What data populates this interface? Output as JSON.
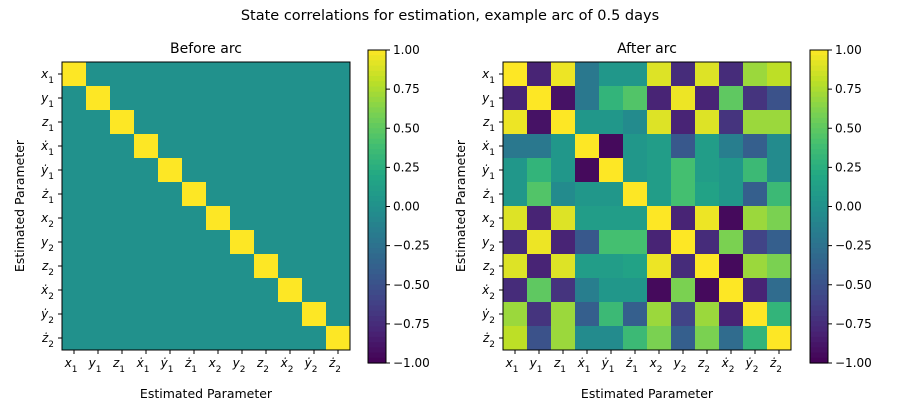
{
  "figure": {
    "title": "State correlations for estimation, example arc of 0.5 days"
  },
  "chart_data": [
    {
      "type": "heatmap",
      "title": "Before arc",
      "xlabel": "Estimated Parameter",
      "ylabel": "Estimated Parameter",
      "colormap": "viridis",
      "clim": [
        -1.0,
        1.0
      ],
      "colorbar_ticks": [
        "1.00",
        "0.75",
        "0.50",
        "0.25",
        "0.00",
        "−0.25",
        "−0.50",
        "−0.75",
        "−1.00"
      ],
      "labels": [
        "x1",
        "y1",
        "z1",
        "xdot1",
        "ydot1",
        "zdot1",
        "x2",
        "y2",
        "z2",
        "xdot2",
        "ydot2",
        "zdot2"
      ],
      "matrix": [
        [
          1,
          0,
          0,
          0,
          0,
          0,
          0,
          0,
          0,
          0,
          0,
          0
        ],
        [
          0,
          1,
          0,
          0,
          0,
          0,
          0,
          0,
          0,
          0,
          0,
          0
        ],
        [
          0,
          0,
          1,
          0,
          0,
          0,
          0,
          0,
          0,
          0,
          0,
          0
        ],
        [
          0,
          0,
          0,
          1,
          0,
          0,
          0,
          0,
          0,
          0,
          0,
          0
        ],
        [
          0,
          0,
          0,
          0,
          1,
          0,
          0,
          0,
          0,
          0,
          0,
          0
        ],
        [
          0,
          0,
          0,
          0,
          0,
          1,
          0,
          0,
          0,
          0,
          0,
          0
        ],
        [
          0,
          0,
          0,
          0,
          0,
          0,
          1,
          0,
          0,
          0,
          0,
          0
        ],
        [
          0,
          0,
          0,
          0,
          0,
          0,
          0,
          1,
          0,
          0,
          0,
          0
        ],
        [
          0,
          0,
          0,
          0,
          0,
          0,
          0,
          0,
          1,
          0,
          0,
          0
        ],
        [
          0,
          0,
          0,
          0,
          0,
          0,
          0,
          0,
          0,
          1,
          0,
          0
        ],
        [
          0,
          0,
          0,
          0,
          0,
          0,
          0,
          0,
          0,
          0,
          1,
          0
        ],
        [
          0,
          0,
          0,
          0,
          0,
          0,
          0,
          0,
          0,
          0,
          0,
          1
        ]
      ]
    },
    {
      "type": "heatmap",
      "title": "After arc",
      "xlabel": "Estimated Parameter",
      "ylabel": "Estimated Parameter",
      "colormap": "viridis",
      "clim": [
        -1.0,
        1.0
      ],
      "colorbar_ticks": [
        "1.00",
        "0.75",
        "0.50",
        "0.25",
        "0.00",
        "−0.25",
        "−0.50",
        "−0.75",
        "−1.00"
      ],
      "labels": [
        "x1",
        "y1",
        "z1",
        "xdot1",
        "ydot1",
        "zdot1",
        "x2",
        "y2",
        "z2",
        "xdot2",
        "ydot2",
        "zdot2"
      ],
      "matrix": [
        [
          1.0,
          -0.8,
          0.95,
          -0.2,
          0.05,
          0.05,
          0.9,
          -0.75,
          0.9,
          -0.75,
          0.7,
          0.8
        ],
        [
          -0.8,
          1.0,
          -0.9,
          -0.2,
          0.3,
          0.45,
          -0.8,
          0.95,
          -0.8,
          0.5,
          -0.7,
          -0.5
        ],
        [
          0.95,
          -0.9,
          1.0,
          0.05,
          0.05,
          -0.05,
          0.9,
          -0.8,
          0.9,
          -0.7,
          0.7,
          0.7
        ],
        [
          -0.2,
          -0.2,
          0.05,
          1.0,
          -0.95,
          0.05,
          0.1,
          -0.45,
          0.1,
          -0.15,
          -0.4,
          -0.05
        ],
        [
          0.05,
          0.3,
          0.05,
          -0.95,
          1.0,
          0.05,
          0.1,
          0.4,
          0.1,
          0.05,
          0.35,
          -0.05
        ],
        [
          0.05,
          0.45,
          -0.05,
          0.05,
          0.05,
          1.0,
          0.1,
          0.4,
          0.15,
          0.05,
          -0.4,
          0.35
        ],
        [
          0.9,
          -0.8,
          0.9,
          0.1,
          0.1,
          0.1,
          1.0,
          -0.8,
          0.95,
          -0.95,
          0.7,
          0.6
        ],
        [
          -0.75,
          0.95,
          -0.8,
          -0.45,
          0.4,
          0.4,
          -0.8,
          1.0,
          -0.75,
          0.6,
          -0.6,
          -0.4
        ],
        [
          0.9,
          -0.8,
          0.9,
          0.1,
          0.1,
          0.15,
          0.95,
          -0.75,
          1.0,
          -0.95,
          0.7,
          0.6
        ],
        [
          -0.75,
          0.5,
          -0.7,
          -0.15,
          0.05,
          0.05,
          -0.95,
          0.6,
          -0.95,
          1.0,
          -0.8,
          -0.3
        ],
        [
          0.7,
          -0.7,
          0.7,
          -0.4,
          0.35,
          -0.4,
          0.7,
          -0.6,
          0.7,
          -0.8,
          1.0,
          0.3
        ],
        [
          0.8,
          -0.5,
          0.7,
          -0.05,
          -0.05,
          0.35,
          0.6,
          -0.4,
          0.6,
          -0.3,
          0.3,
          1.0
        ]
      ]
    }
  ]
}
